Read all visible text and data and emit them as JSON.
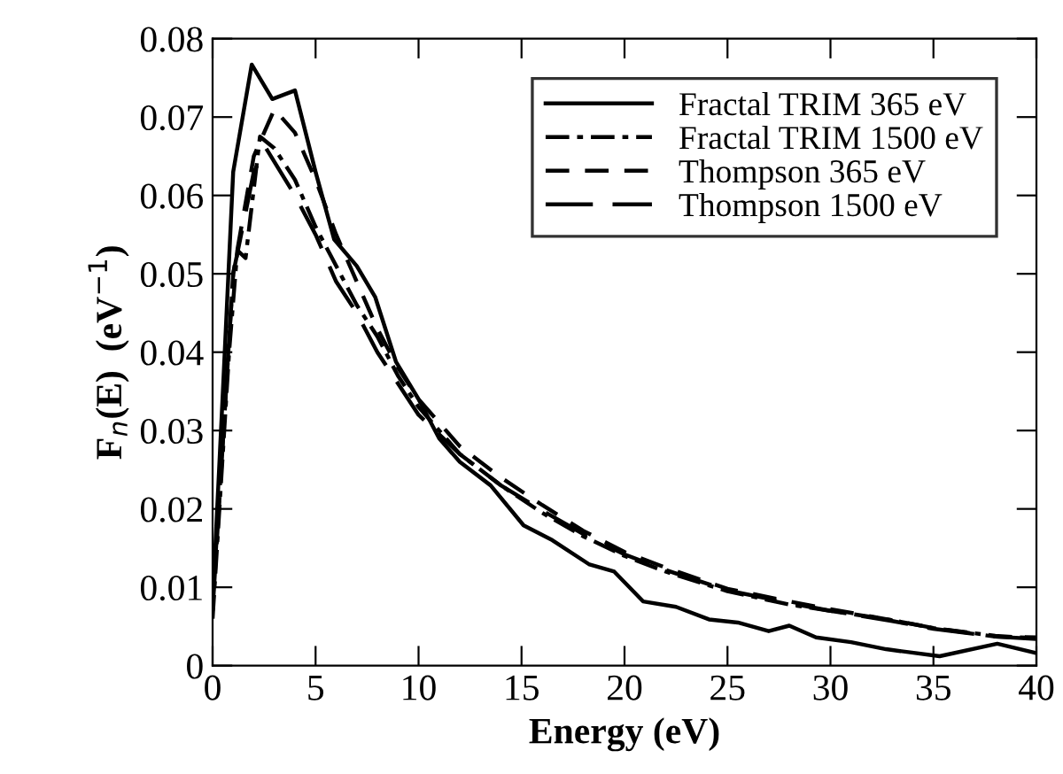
{
  "chart_data": {
    "type": "line",
    "xlabel": "Energy (eV)",
    "ylabel": "F$_{n}$(E)  (eV$^{−1}$)",
    "xlim": [
      0,
      40
    ],
    "xticks": [
      0,
      5,
      10,
      15,
      20,
      25,
      30,
      35,
      40
    ],
    "ylim": [
      0,
      0.08
    ],
    "yticks": [
      0,
      0.01,
      0.02,
      0.03,
      0.04,
      0.05,
      0.06,
      0.07,
      0.08
    ],
    "grid": false,
    "legend": "top right",
    "marker": "none",
    "series": [
      {
        "name": "Fractal TRIM 365 eV",
        "color": "#000000",
        "line_style": "solid",
        "x": [
          0,
          0.5,
          1,
          1.9,
          2.9,
          4,
          5,
          5.9,
          7,
          7.9,
          8.9,
          10,
          11,
          12,
          13.5,
          15.1,
          16.5,
          18.3,
          19.5,
          20.9,
          22.5,
          24.1,
          25.5,
          27,
          28,
          29.3,
          31,
          32.7,
          35.3,
          38.1,
          40
        ],
        "values": [
          0.008,
          0.035,
          0.063,
          0.0767,
          0.0723,
          0.0734,
          0.063,
          0.0544,
          0.051,
          0.047,
          0.0388,
          0.034,
          0.029,
          0.026,
          0.023,
          0.0179,
          0.016,
          0.0129,
          0.012,
          0.0082,
          0.0075,
          0.0059,
          0.0055,
          0.0044,
          0.0051,
          0.0036,
          0.003,
          0.0021,
          0.0012,
          0.0028,
          0.0016
        ]
      },
      {
        "name": "Fractal TRIM 1500 eV",
        "color": "#000000",
        "line_style": "dashdot",
        "x": [
          0,
          0.8,
          1.2,
          1.6,
          2.3,
          3,
          4,
          5,
          6,
          7,
          8,
          9,
          10,
          12,
          14,
          16,
          18,
          20,
          22,
          25,
          28,
          30,
          33,
          35,
          38,
          40
        ],
        "values": [
          0.006,
          0.04,
          0.053,
          0.052,
          0.0675,
          0.066,
          0.062,
          0.056,
          0.051,
          0.046,
          0.042,
          0.037,
          0.033,
          0.027,
          0.023,
          0.0195,
          0.0165,
          0.014,
          0.012,
          0.0095,
          0.0078,
          0.007,
          0.0058,
          0.0048,
          0.0038,
          0.0035
        ]
      },
      {
        "name": "Thompson 365 eV",
        "color": "#000000",
        "line_style": "dashed",
        "x": [
          0,
          1,
          2,
          3,
          4,
          5,
          6,
          7,
          8,
          9,
          10,
          12,
          14,
          16,
          18,
          20,
          22,
          25,
          28,
          30,
          33,
          35,
          38,
          40
        ],
        "values": [
          0.008,
          0.05,
          0.065,
          0.071,
          0.068,
          0.062,
          0.055,
          0.049,
          0.043,
          0.038,
          0.034,
          0.028,
          0.024,
          0.0205,
          0.0172,
          0.0145,
          0.0125,
          0.0098,
          0.0082,
          0.0072,
          0.0058,
          0.0048,
          0.0037,
          0.0036
        ]
      },
      {
        "name": "Thompson 1500 eV",
        "color": "#000000",
        "line_style": "longdash",
        "x": [
          0,
          1,
          2,
          2.6,
          4,
          5,
          6,
          7,
          8,
          9,
          10,
          12,
          14,
          16,
          18,
          20,
          22,
          25,
          28,
          30,
          33,
          35,
          38,
          40
        ],
        "values": [
          0.007,
          0.05,
          0.063,
          0.066,
          0.06,
          0.055,
          0.049,
          0.045,
          0.04,
          0.036,
          0.032,
          0.027,
          0.023,
          0.0198,
          0.0168,
          0.0142,
          0.0122,
          0.0096,
          0.008,
          0.007,
          0.0057,
          0.0047,
          0.0037,
          0.0034
        ]
      }
    ]
  }
}
